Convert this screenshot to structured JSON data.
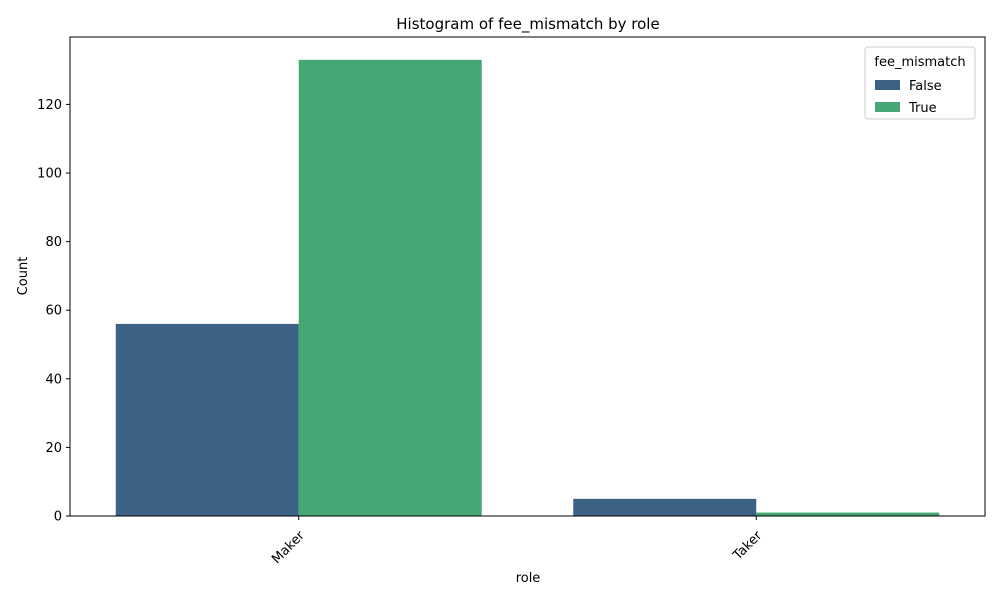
{
  "chart_data": {
    "type": "bar",
    "title": "Histogram of fee_mismatch by role",
    "xlabel": "role",
    "ylabel": "Count",
    "categories": [
      "Maker",
      "Taker"
    ],
    "series": [
      {
        "name": "False",
        "values": [
          56,
          5
        ],
        "color": "#3b6184"
      },
      {
        "name": "True",
        "values": [
          133,
          1
        ],
        "color": "#45a874"
      }
    ],
    "ylim": [
      0,
      139.65
    ],
    "yticks": [
      0,
      20,
      40,
      60,
      80,
      100,
      120
    ],
    "x_tick_rotation_deg": 45,
    "grid": false,
    "legend": {
      "title": "fee_mismatch",
      "position": "top-right"
    }
  }
}
